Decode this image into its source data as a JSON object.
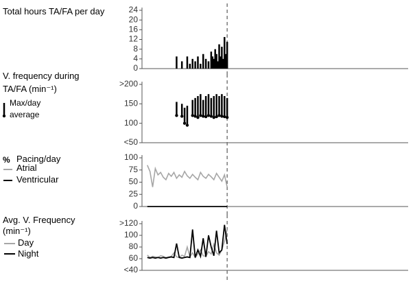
{
  "chart_data": [
    {
      "type": "bar",
      "title": "Total hours TA/FA per day",
      "xlim": [
        0,
        100
      ],
      "divider_x": 32,
      "x": [
        13,
        15,
        17,
        18,
        19,
        20,
        21,
        22,
        23,
        24,
        25,
        26,
        26.5,
        27,
        27.5,
        28,
        28.5,
        29,
        29.5,
        30,
        30.5,
        31,
        31.5,
        32
      ],
      "series": [
        {
          "name": null,
          "color": "#000000",
          "values": [
            5,
            3,
            5,
            2,
            4,
            3,
            5,
            2,
            6,
            4,
            3,
            7,
            5,
            4,
            8,
            6,
            3,
            10,
            5,
            9,
            4,
            13,
            6,
            11
          ]
        }
      ],
      "ylim": [
        0,
        24
      ],
      "yticks": [
        0,
        4,
        8,
        12,
        16,
        20,
        24
      ]
    },
    {
      "type": "range",
      "title": "V. frequency during TA/FA (min⁻¹)",
      "xlim": [
        0,
        100
      ],
      "divider_x": 32,
      "x": [
        13,
        15,
        16,
        17,
        19,
        20,
        21,
        22,
        23,
        24,
        25,
        26,
        27,
        28,
        29,
        30,
        31,
        32
      ],
      "series": [
        {
          "name": "Max/day",
          "color": "#000000",
          "values": [
            155,
            150,
            140,
            145,
            160,
            165,
            170,
            175,
            160,
            170,
            175,
            165,
            170,
            175,
            170,
            175,
            170,
            165
          ]
        },
        {
          "name": "average",
          "color": "#000000",
          "values": [
            120,
            118,
            100,
            95,
            120,
            118,
            115,
            120,
            118,
            117,
            120,
            118,
            115,
            117,
            120,
            118,
            117,
            115
          ]
        }
      ],
      "ylim": [
        50,
        200
      ],
      "yticks": [
        {
          "value": 50,
          "label": "<50"
        },
        100,
        150,
        {
          "value": 200,
          "label": ">200"
        }
      ]
    },
    {
      "type": "line",
      "title": "Pacing/day",
      "y_label": "%",
      "xlim": [
        0,
        100
      ],
      "divider_x": 32,
      "x": [
        2,
        3,
        4,
        5,
        6,
        7,
        8,
        9,
        10,
        11,
        12,
        13,
        14,
        15,
        16,
        17,
        18,
        19,
        20,
        21,
        22,
        23,
        24,
        25,
        26,
        27,
        28,
        29,
        30,
        31,
        32
      ],
      "series": [
        {
          "name": "Atrial",
          "color": "#a6a6a6",
          "values": [
            85,
            72,
            40,
            78,
            65,
            70,
            60,
            55,
            68,
            62,
            70,
            58,
            65,
            60,
            72,
            63,
            58,
            66,
            60,
            55,
            70,
            62,
            58,
            66,
            61,
            55,
            68,
            60,
            52,
            65,
            40
          ]
        },
        {
          "name": "Ventricular",
          "color": "#000000",
          "values": [
            0,
            0,
            0,
            0,
            0,
            0,
            0,
            0,
            0,
            0,
            0,
            0,
            0,
            0,
            0,
            0,
            0,
            0,
            0,
            0,
            0,
            0,
            0,
            0,
            0,
            0,
            0,
            0,
            0,
            0,
            0
          ]
        }
      ],
      "ylim": [
        0,
        100
      ],
      "yticks": [
        0,
        25,
        50,
        75,
        100
      ]
    },
    {
      "type": "line",
      "title": "Avg. V. Frequency (min⁻¹)",
      "xlim": [
        0,
        100
      ],
      "divider_x": 32,
      "x": [
        2,
        3,
        4,
        5,
        6,
        7,
        8,
        9,
        10,
        11,
        12,
        13,
        14,
        15,
        16,
        17,
        18,
        19,
        20,
        21,
        22,
        23,
        24,
        25,
        26,
        27,
        28,
        29,
        30,
        31,
        32
      ],
      "series": [
        {
          "name": "Day",
          "color": "#a6a6a6",
          "values": [
            66,
            62,
            64,
            63,
            62,
            65,
            64,
            62,
            63,
            64,
            70,
            63,
            62,
            66,
            64,
            80,
            63,
            70,
            62,
            68,
            75,
            65,
            64,
            72,
            68,
            85,
            70,
            66,
            75,
            90,
            110
          ]
        },
        {
          "name": "Night",
          "color": "#000000",
          "values": [
            62,
            61,
            62,
            61,
            62,
            61,
            62,
            61,
            62,
            63,
            62,
            86,
            62,
            61,
            62,
            63,
            62,
            110,
            62,
            75,
            64,
            95,
            63,
            100,
            80,
            65,
            108,
            70,
            75,
            118,
            85
          ]
        }
      ],
      "ylim": [
        40,
        120
      ],
      "yticks": [
        {
          "value": 40,
          "label": "<40"
        },
        60,
        80,
        100,
        {
          "value": 120,
          "label": ">120"
        }
      ]
    }
  ]
}
